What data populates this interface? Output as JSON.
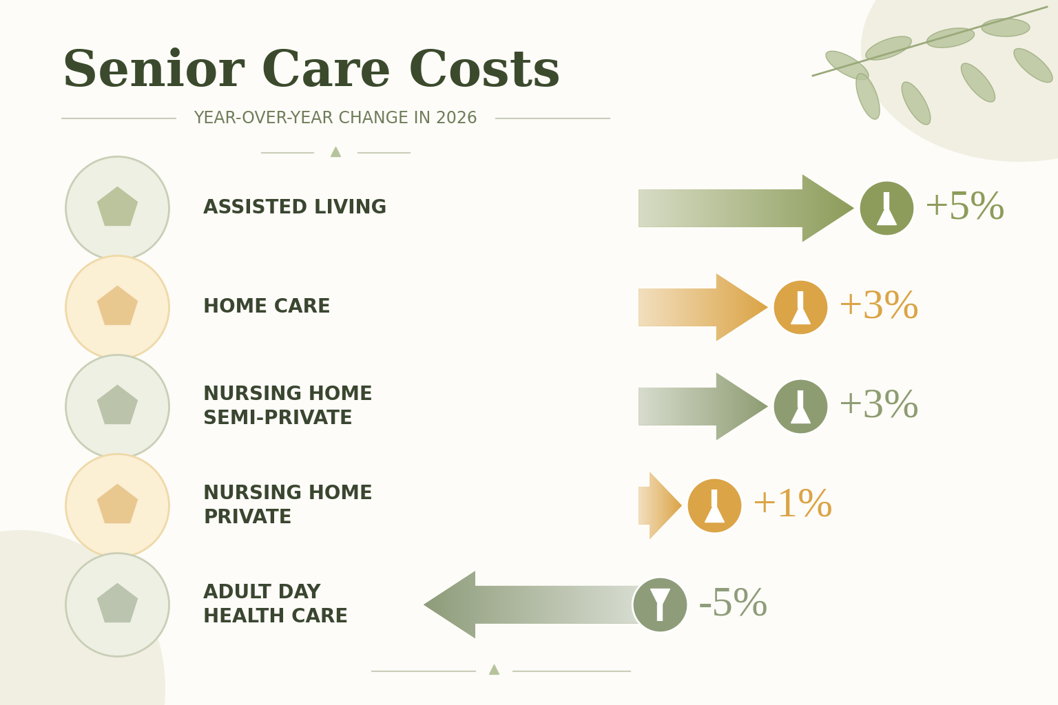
{
  "chart_data": {
    "type": "bar",
    "orientation": "horizontal",
    "title": "Senior Care Costs",
    "subtitle": "YEAR-OVER-YEAR CHANGE IN 2026",
    "categories": [
      "ASSISTED LIVING",
      "HOME CARE",
      "NURSING HOME SEMI-PRIVATE",
      "NURSING HOME PRIVATE",
      "ADULT DAY HEALTH CARE"
    ],
    "values": [
      5,
      3,
      3,
      1,
      -5
    ],
    "value_labels": [
      "+5%",
      "+3%",
      "+3%",
      "+1%",
      "-5%"
    ],
    "colors": [
      "#8d9c5a",
      "#dba446",
      "#8e9c72",
      "#dba446",
      "#8e9c7a"
    ],
    "data_labels": true,
    "tick_labels": false,
    "grid": false
  }
}
